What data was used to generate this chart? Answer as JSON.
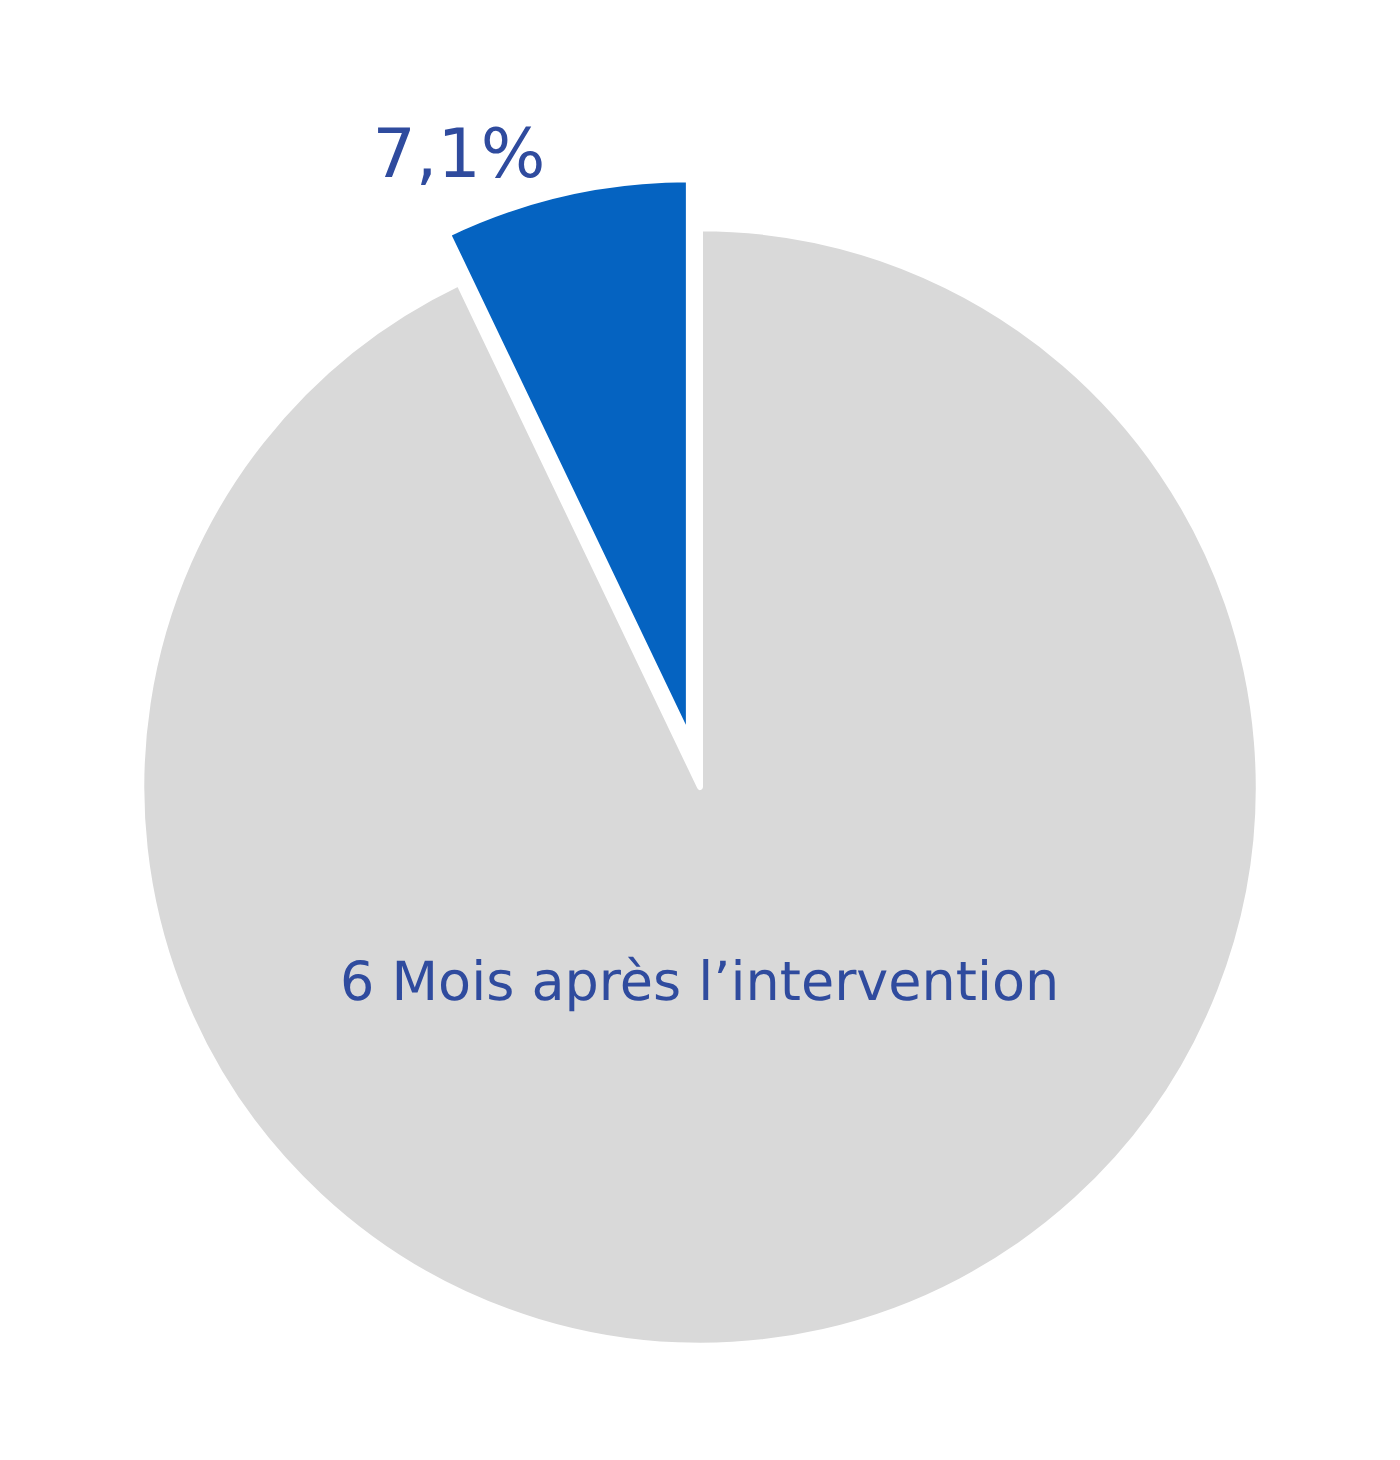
{
  "chart_data": {
    "type": "pie",
    "categories": [
      null,
      null
    ],
    "values": [
      7.1,
      92.9
    ],
    "value_labels": [
      "7,1%",
      null
    ],
    "colors": [
      "#0563c1",
      "#d9d9d9"
    ],
    "annotations": [
      "6 Mois après l’intervention"
    ],
    "legend": false
  }
}
